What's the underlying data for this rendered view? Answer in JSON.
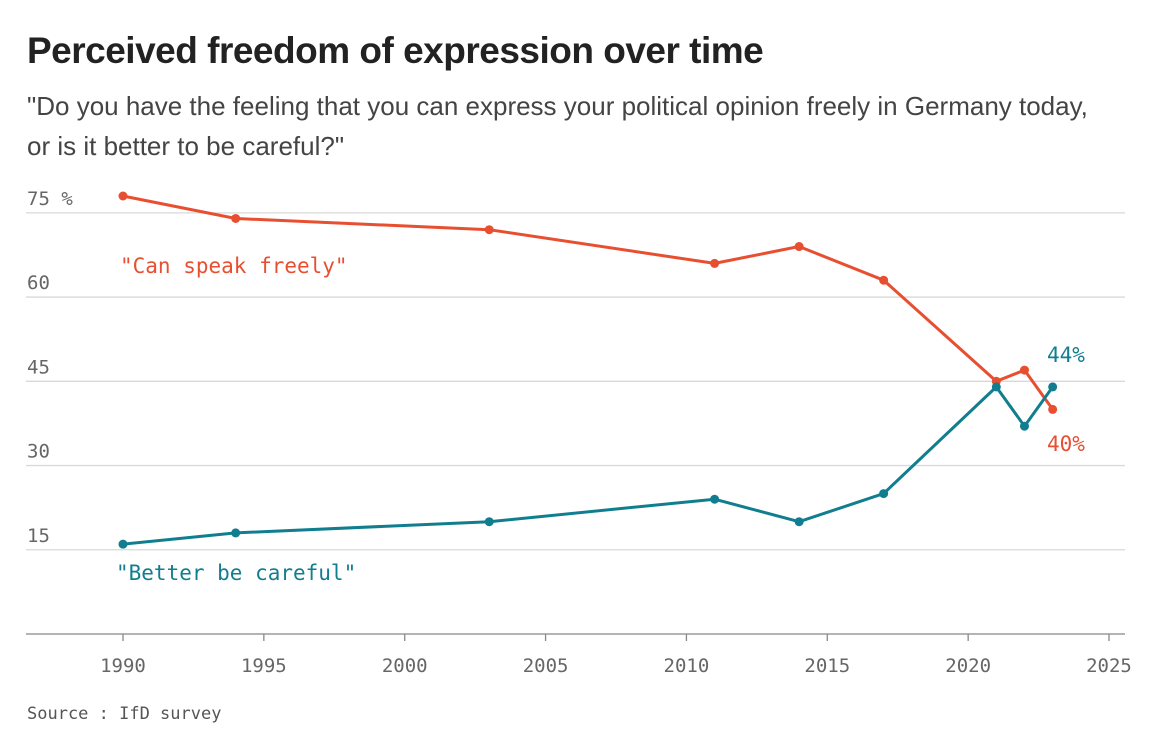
{
  "chart_data": {
    "type": "line",
    "title": "Perceived freedom of expression over time",
    "subtitle": "\"Do you have the feeling that you can express your political opinion freely in Germany today, or is it better to be careful?\"",
    "source": "Source : IfD survey",
    "xlabel": "",
    "ylabel": "",
    "xlim": [
      1987,
      2026
    ],
    "ylim": [
      0,
      78
    ],
    "x_ticks": [
      1990,
      1995,
      2000,
      2005,
      2010,
      2015,
      2020,
      2025
    ],
    "y_ticks": [
      15,
      30,
      45,
      60,
      75
    ],
    "y_tick_labels": [
      "15",
      "30",
      "45",
      "60",
      "75 %"
    ],
    "grid": true,
    "series": [
      {
        "name": "\"Can speak freely\"",
        "color": "#e84f31",
        "x": [
          1990,
          1994,
          2003,
          2011,
          2014,
          2017,
          2021,
          2022,
          2023
        ],
        "values": [
          78,
          74,
          72,
          66,
          69,
          63,
          45,
          47,
          40
        ],
        "end_label": "40%"
      },
      {
        "name": "\"Better be careful\"",
        "color": "#117e8f",
        "x": [
          1990,
          1994,
          2003,
          2011,
          2014,
          2017,
          2021,
          2022,
          2023
        ],
        "values": [
          16,
          18,
          20,
          24,
          20,
          25,
          44,
          37,
          44
        ],
        "end_label": "44%"
      }
    ]
  }
}
